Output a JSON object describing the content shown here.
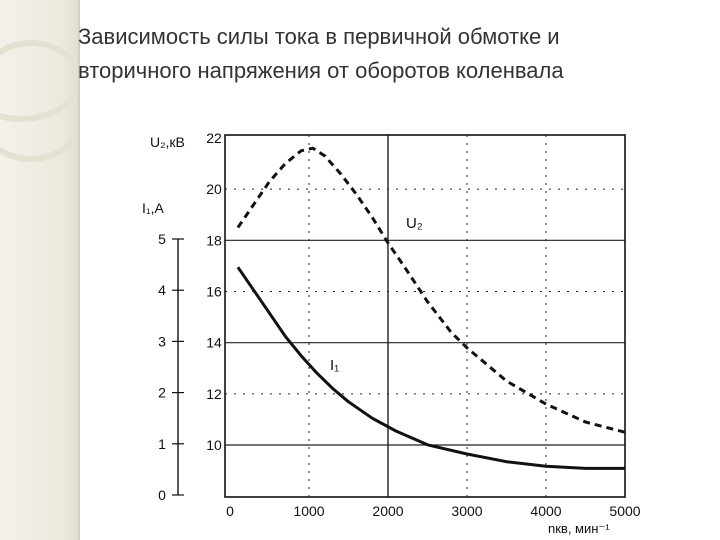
{
  "slide": {
    "title_line1": "Зависимость силы тока в первичной обмотке и",
    "title_line2": "вторичного напряжения от оборотов коленвала"
  },
  "colors": {
    "border": "#ece9de",
    "curve": "#111111",
    "text": "#333333"
  },
  "chart_data": {
    "type": "line",
    "x_axis": {
      "label": "nкв, мин⁻¹",
      "range": [
        0,
        5000
      ],
      "ticks": [
        0,
        1000,
        2000,
        3000,
        4000,
        5000
      ]
    },
    "y_axis_left_inner": {
      "label": "U₂,кВ",
      "range": [
        8,
        22
      ],
      "ticks": [
        10,
        12,
        14,
        16,
        18,
        20,
        22
      ]
    },
    "y_axis_left_outer": {
      "label": "I₁,A",
      "range": [
        0,
        5
      ],
      "ticks": [
        0,
        1,
        2,
        3,
        4,
        5
      ]
    },
    "series": [
      {
        "name": "U₂",
        "style": "dashed",
        "axis": "U",
        "x": [
          100,
          300,
          500,
          700,
          900,
          1050,
          1200,
          1400,
          1600,
          1800,
          2000,
          2200,
          2500,
          2800,
          3000,
          3500,
          4000,
          4500,
          5000
        ],
        "y": [
          18.5,
          19.4,
          20.3,
          21.0,
          21.5,
          21.6,
          21.3,
          20.6,
          19.8,
          18.9,
          17.9,
          17.0,
          15.6,
          14.4,
          13.8,
          12.5,
          11.6,
          10.9,
          10.5
        ]
      },
      {
        "name": "I₁",
        "style": "solid",
        "axis": "I",
        "x": [
          100,
          300,
          500,
          700,
          900,
          1100,
          1300,
          1500,
          1800,
          2100,
          2500,
          3000,
          3500,
          4000,
          4500,
          5000
        ],
        "y": [
          4.45,
          4.0,
          3.55,
          3.1,
          2.72,
          2.38,
          2.08,
          1.82,
          1.5,
          1.25,
          0.98,
          0.8,
          0.65,
          0.56,
          0.52,
          0.52
        ]
      }
    ]
  }
}
